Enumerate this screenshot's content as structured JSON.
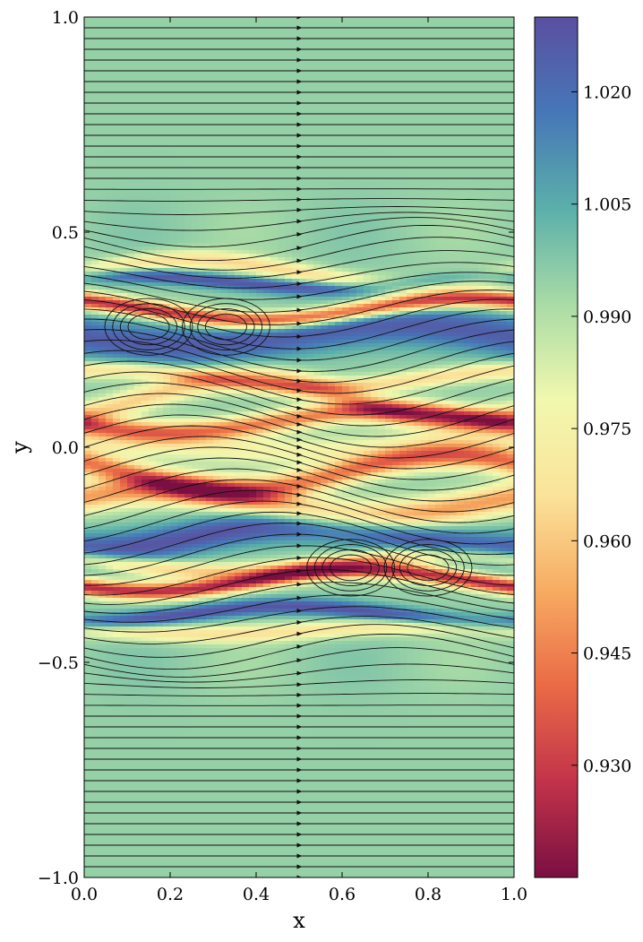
{
  "chart_data": {
    "type": "heatmap",
    "title": "",
    "xlabel": "x",
    "ylabel": "y",
    "xlim": [
      0.0,
      1.0
    ],
    "ylim": [
      -1.0,
      1.0
    ],
    "x_ticks": [
      "0.0",
      "0.2",
      "0.4",
      "0.6",
      "0.8",
      "1.0"
    ],
    "y_ticks": [
      "1.0",
      "0.5",
      "0.0",
      "−0.5",
      "−1.0"
    ],
    "x_tick_values": [
      0.0,
      0.2,
      0.4,
      0.6,
      0.8,
      1.0
    ],
    "y_tick_values": [
      1.0,
      0.5,
      0.0,
      -0.5,
      -1.0
    ],
    "overlay": "streamlines",
    "grid": false,
    "colormap": "Spectral",
    "colorbar": {
      "range": [
        0.915,
        1.03
      ],
      "ticks": [
        "1.020",
        "1.005",
        "0.990",
        "0.975",
        "0.960",
        "0.945",
        "0.930"
      ],
      "tick_values": [
        1.02,
        1.005,
        0.99,
        0.975,
        0.96,
        0.945,
        0.93
      ],
      "colors": [
        "#7a0f42",
        "#c2334a",
        "#ea6a46",
        "#f7ab62",
        "#fbe39a",
        "#f1f8ae",
        "#a9dba6",
        "#5bafaa",
        "#4677b7",
        "#5a4fa0"
      ]
    }
  }
}
